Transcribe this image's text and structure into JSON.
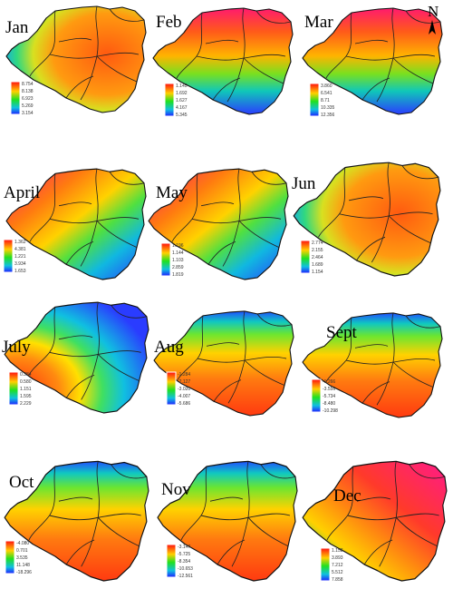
{
  "north": {
    "letter": "N"
  },
  "panels": [
    {
      "month": "Jan",
      "gradient": "radial",
      "legend": [
        "8.754",
        "8.138",
        "6.923",
        "5.269",
        "3.154"
      ],
      "bold": true
    },
    {
      "month": "Feb",
      "gradient": "ns",
      "legend": [
        "1.145",
        "1.692",
        "1.627",
        "4.167",
        "5.345"
      ]
    },
    {
      "month": "Mar",
      "gradient": "ns",
      "legend": [
        "3.860",
        "6.541",
        "8.71",
        "10.335",
        "12.356"
      ]
    },
    {
      "month": "April",
      "gradient": "diag",
      "legend": [
        "1.362",
        "4.381",
        "1.221",
        "3.934",
        "1.653"
      ]
    },
    {
      "month": "May",
      "gradient": "diag",
      "legend": [
        "1.196",
        "1.144",
        "1.103",
        "2.859",
        "1.819"
      ]
    },
    {
      "month": "Jun",
      "gradient": "radial",
      "legend": [
        "2.774",
        "2.155",
        "2.464",
        "1.689",
        "1.154"
      ]
    },
    {
      "month": "July",
      "gradient": "july",
      "legend": [
        "0.384",
        "0.580",
        "1.151",
        "1.595",
        "2.229"
      ]
    },
    {
      "month": "Aug",
      "gradient": "sn",
      "legend": [
        "-1.284",
        "-2.127",
        "-3.020",
        "-4.007",
        "-5.686"
      ]
    },
    {
      "month": "Sept",
      "gradient": "sn",
      "legend": [
        "-1.266",
        "-3.556",
        "-5.734",
        "-8.480",
        "-10.298"
      ]
    },
    {
      "month": "Oct",
      "gradient": "sn",
      "legend": [
        "-4.080",
        "0.701",
        "3.535",
        "11.148",
        "-18.296"
      ]
    },
    {
      "month": "Nov",
      "gradient": "sn",
      "legend": [
        "-3.147",
        "-5.725",
        "-8.354",
        "-10.653",
        "-12.561"
      ]
    },
    {
      "month": "Dec",
      "gradient": "ne",
      "legend": [
        "1.158",
        "3.893",
        "7.212",
        "5.512",
        "7.858"
      ]
    }
  ]
}
